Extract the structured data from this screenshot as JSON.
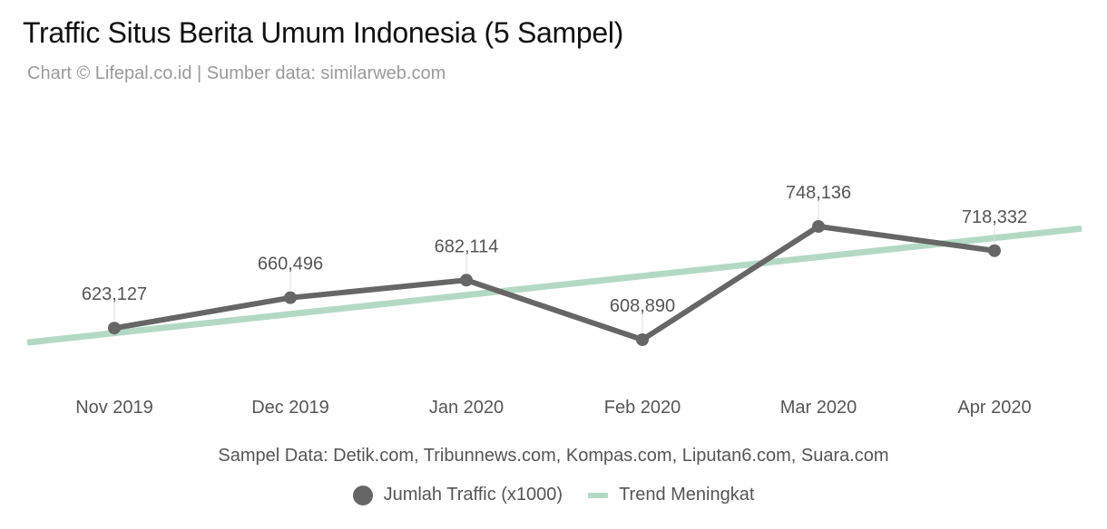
{
  "title": "Traffic Situs Berita Umum Indonesia (5 Sampel)",
  "subtitle": "Chart © Lifepal.co.id | Sumber data: similarweb.com",
  "footnote": "Sampel Data: Detik.com, Tribunnews.com, Kompas.com, Liputan6.com, Suara.com",
  "colors": {
    "series": "#666666",
    "trend": "#b3d9c4",
    "label": "#555555"
  },
  "chart_data": {
    "type": "line",
    "categories": [
      "Nov 2019",
      "Dec 2019",
      "Jan 2020",
      "Feb 2020",
      "Mar 2020",
      "Apr 2020"
    ],
    "series": [
      {
        "name": "Jumlah Traffic (x1000)",
        "values": [
          623127,
          660496,
          682114,
          608890,
          748136,
          718332
        ],
        "labels": [
          "623,127",
          "660,496",
          "682,114",
          "608,890",
          "748,136",
          "718,332"
        ],
        "marker": "circle"
      },
      {
        "name": "Trend Meningkat",
        "type": "trendline",
        "start": 617000,
        "end": 734000
      }
    ],
    "legend_position": "bottom-center",
    "grid": false,
    "y_axis_visible": false
  }
}
